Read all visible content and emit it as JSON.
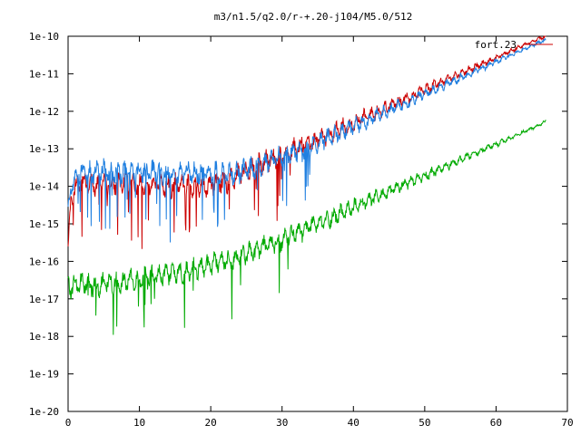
{
  "chart_data": {
    "type": "line",
    "title": "m3/n1.5/q2.0/r-+.20-j104/M5.0/512",
    "xlabel": "",
    "ylabel": "",
    "xlim": [
      0,
      70
    ],
    "ylim": [
      1e-20,
      1e-10
    ],
    "yscale": "log",
    "grid": false,
    "legend_position": "top-right",
    "x_ticks": [
      "0",
      "10",
      "20",
      "30",
      "40",
      "50",
      "60",
      "70"
    ],
    "y_ticks": [
      "1e-20",
      "1e-19",
      "1e-18",
      "1e-17",
      "1e-16",
      "1e-15",
      "1e-14",
      "1e-13",
      "1e-12",
      "1e-11",
      "1e-10"
    ],
    "series": [
      {
        "name": "fort.23",
        "color": "#cc0000",
        "x": [
          0,
          0.5,
          1,
          2,
          3,
          4,
          5,
          6,
          8,
          10,
          12,
          14,
          16,
          18,
          20,
          22,
          24,
          26,
          28,
          30,
          32,
          34,
          36,
          38,
          40,
          42,
          44,
          46,
          48,
          50,
          52,
          54,
          56,
          58,
          60,
          62,
          64,
          66,
          67
        ],
        "y": [
          3e-16,
          5e-15,
          1e-14,
          1.3e-14,
          1.2e-14,
          1e-14,
          1.3e-14,
          1e-14,
          1.4e-14,
          1.1e-14,
          1.2e-14,
          1e-14,
          1.2e-14,
          1e-14,
          1.1e-14,
          1.3e-14,
          2e-14,
          3e-14,
          5e-14,
          7e-14,
          1e-13,
          1.5e-13,
          2.2e-13,
          3.3e-13,
          5e-13,
          7.5e-13,
          1.1e-12,
          1.7e-12,
          2.5e-12,
          3.8e-12,
          5.6e-12,
          8.4e-12,
          1.25e-11,
          1.8e-11,
          2.7e-11,
          4e-11,
          6e-11,
          8.5e-11,
          1e-10
        ]
      },
      {
        "color": "#1f7fe0",
        "x": [
          0,
          0.5,
          1,
          2,
          3,
          4,
          5,
          6,
          8,
          10,
          12,
          14,
          16,
          18,
          20,
          22,
          24,
          26,
          28,
          30,
          32,
          34,
          36,
          38,
          40,
          42,
          44,
          46,
          48,
          50,
          52,
          54,
          56,
          58,
          60,
          62,
          64,
          66,
          67
        ],
        "y": [
          2e-15,
          1e-14,
          2e-14,
          2.5e-14,
          2.2e-14,
          2.3e-14,
          2.5e-14,
          2.2e-14,
          2.4e-14,
          2.3e-14,
          2.5e-14,
          2.2e-14,
          2.4e-14,
          2.2e-14,
          2.3e-14,
          2.2e-14,
          2.3e-14,
          3e-14,
          4.5e-14,
          6e-14,
          8.5e-14,
          1.2e-13,
          1.8e-13,
          2.6e-13,
          3.9e-13,
          5.8e-13,
          8.6e-13,
          1.3e-12,
          1.9e-12,
          2.9e-12,
          4.3e-12,
          6.4e-12,
          9.5e-12,
          1.4e-11,
          2.1e-11,
          3.1e-11,
          4.6e-11,
          6.8e-11,
          8e-11
        ]
      },
      {
        "color": "#00aa00",
        "x": [
          0,
          1,
          2,
          4,
          6,
          8,
          10,
          12,
          14,
          16,
          18,
          20,
          22,
          24,
          26,
          28,
          30,
          32,
          34,
          36,
          38,
          40,
          42,
          44,
          46,
          48,
          50,
          52,
          54,
          56,
          58,
          60,
          62,
          64,
          66,
          67
        ],
        "y": [
          2e-17,
          2.2e-17,
          2.5e-17,
          2.2e-17,
          2.6e-17,
          3e-17,
          3.4e-17,
          4e-17,
          4.5e-17,
          5e-17,
          6e-17,
          8e-17,
          1e-16,
          1.3e-16,
          1.8e-16,
          2.6e-16,
          3.8e-16,
          5.6e-16,
          8.3e-16,
          1.2e-15,
          1.8e-15,
          2.7e-15,
          4e-15,
          5.9e-15,
          8.7e-15,
          1.3e-14,
          1.9e-14,
          2.8e-14,
          4.1e-14,
          6.1e-14,
          9e-14,
          1.3e-13,
          1.9e-13,
          2.9e-13,
          4.2e-13,
          5.5e-13
        ]
      }
    ]
  }
}
